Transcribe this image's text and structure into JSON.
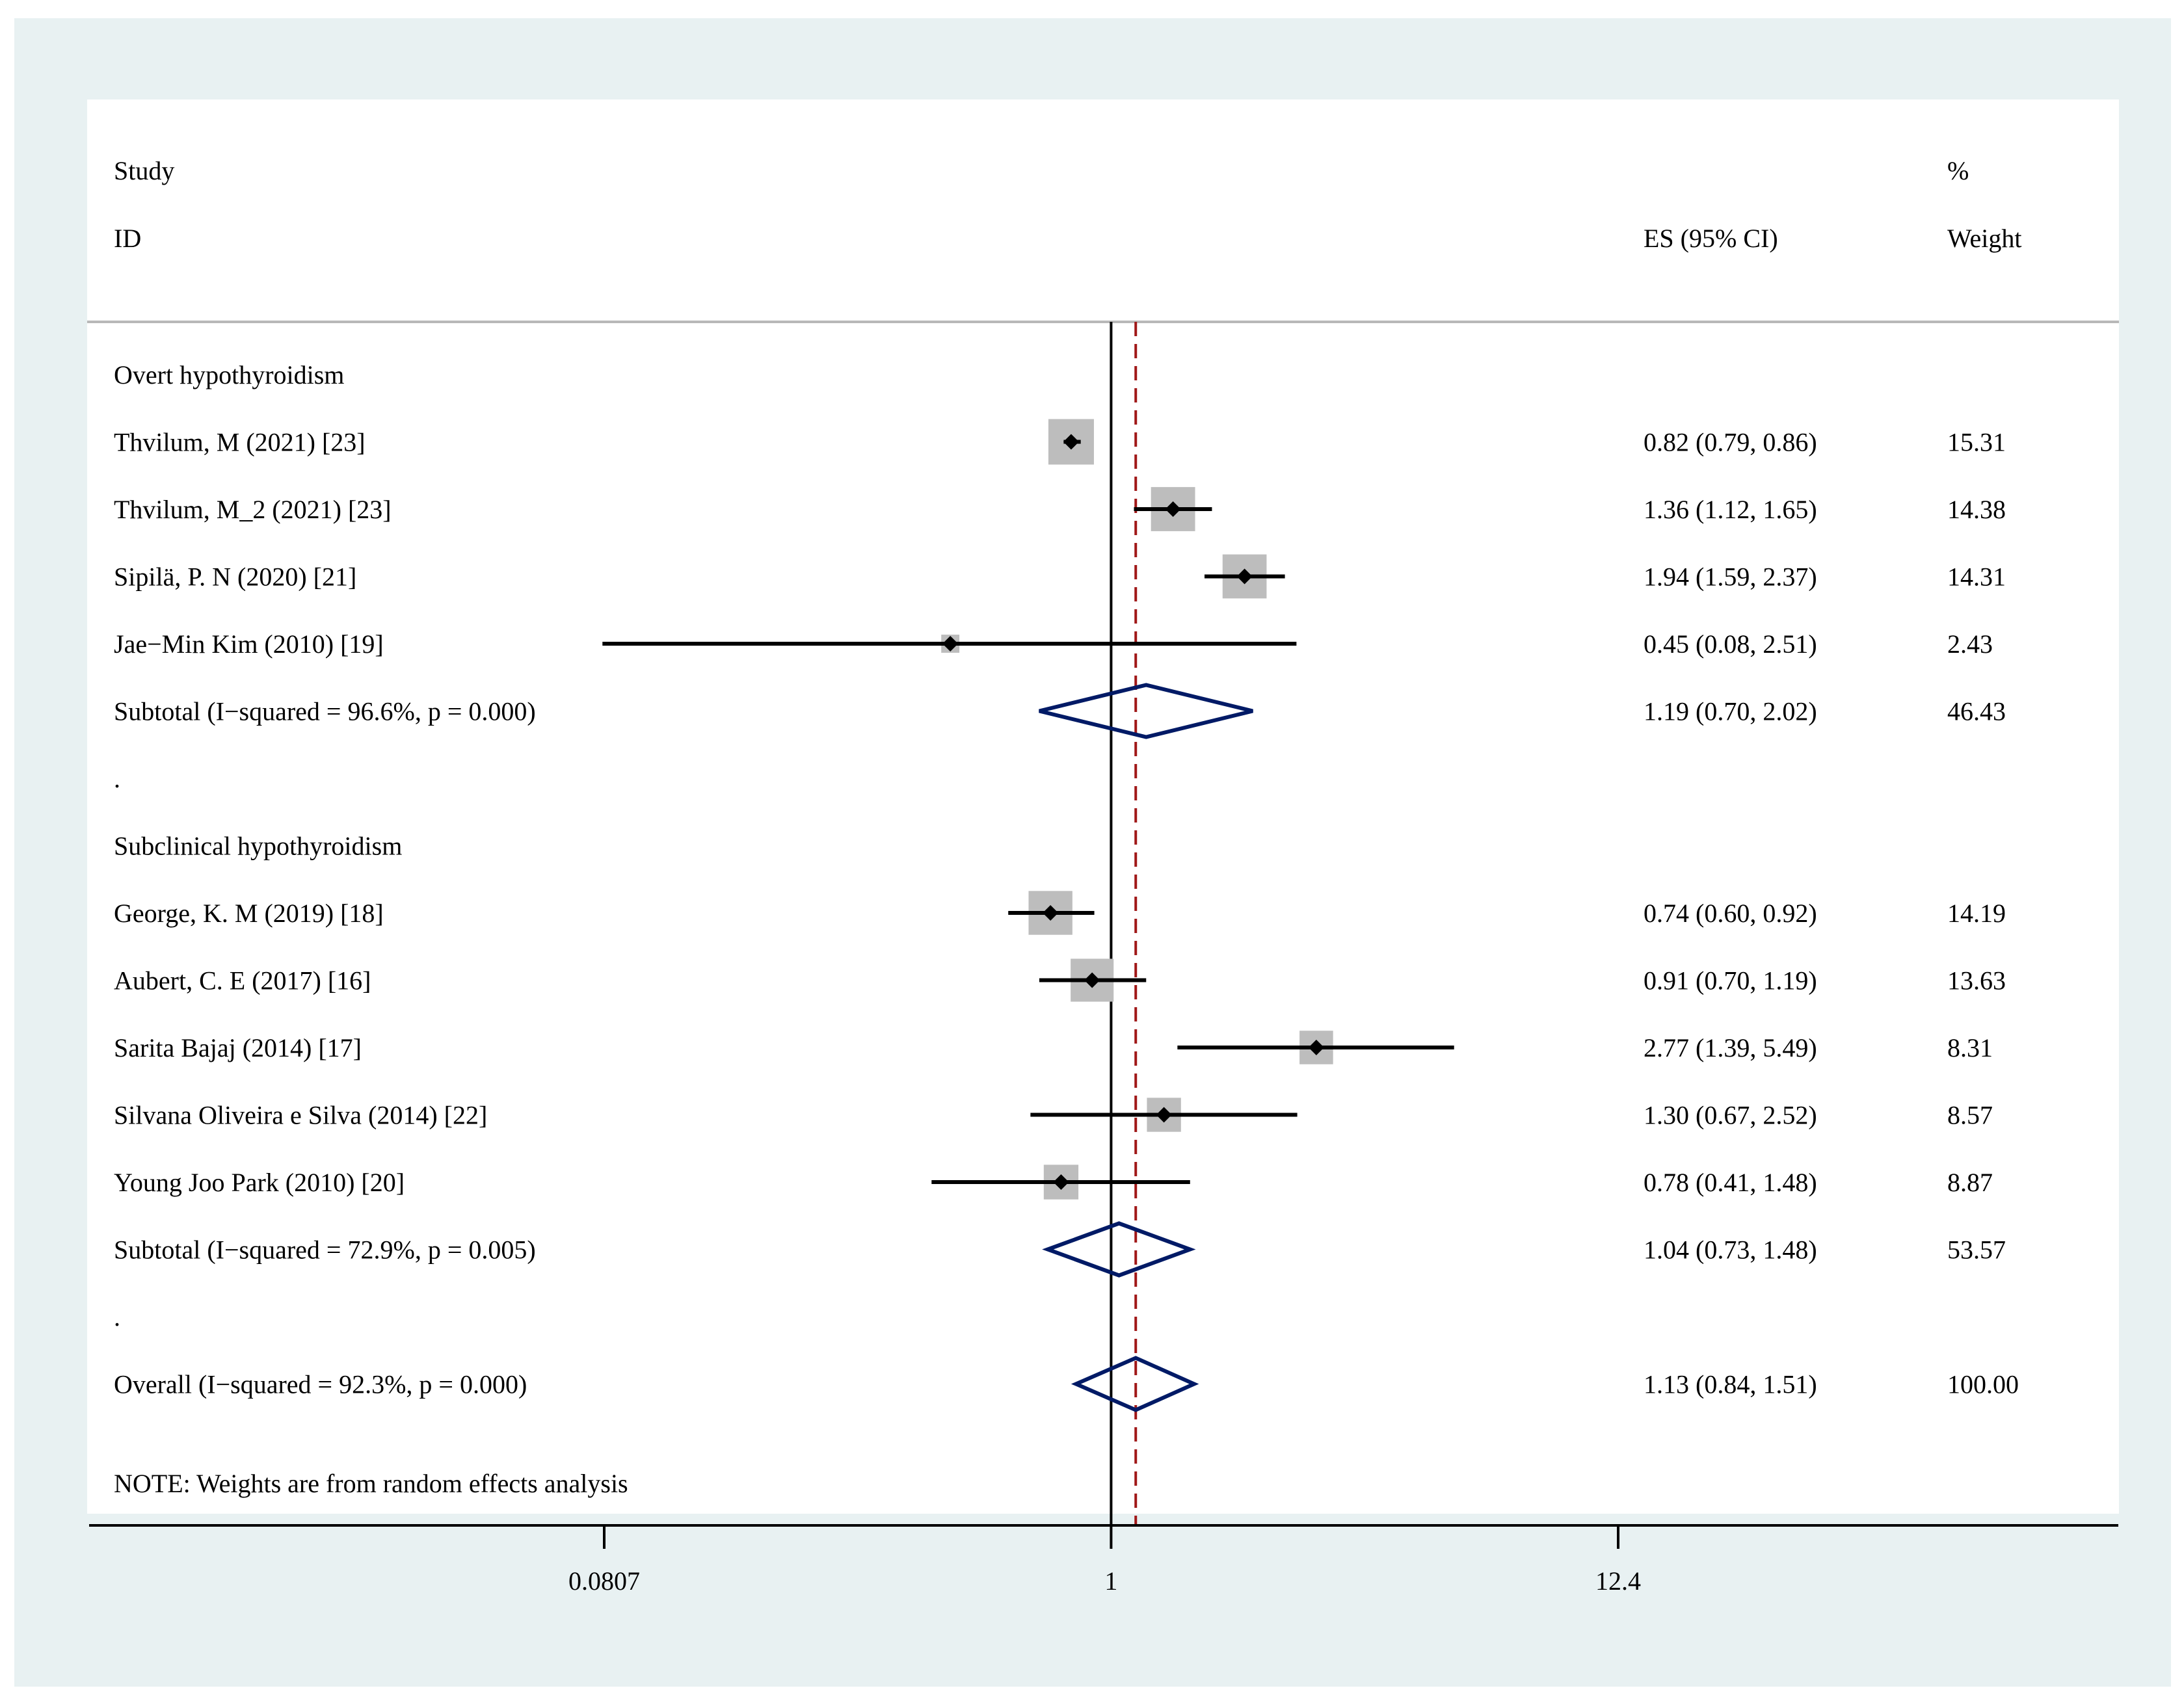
{
  "chart_data": {
    "type": "forest",
    "title": "",
    "scale": "log",
    "xlim": [
      0.0807,
      12.4
    ],
    "xticks": [
      {
        "value": 0.0807,
        "label": "0.0807"
      },
      {
        "value": 1,
        "label": "1"
      },
      {
        "value": 12.4,
        "label": "12.4"
      }
    ],
    "null_line": 1,
    "overall_line": 1.13,
    "headers": {
      "study_line1": "Study",
      "study_line2": "ID",
      "es": "ES (95% CI)",
      "weight_line1": "%",
      "weight_line2": "Weight"
    },
    "rows": [
      {
        "kind": "group",
        "label": "Overt hypothyroidism"
      },
      {
        "kind": "study",
        "label": "Thvilum, M (2021) [23]",
        "es": 0.82,
        "lo": 0.79,
        "hi": 0.86,
        "ci_text": "0.82 (0.79, 0.86)",
        "weight": 15.31,
        "weight_text": "15.31"
      },
      {
        "kind": "study",
        "label": "Thvilum, M_2 (2021) [23]",
        "es": 1.36,
        "lo": 1.12,
        "hi": 1.65,
        "ci_text": "1.36 (1.12, 1.65)",
        "weight": 14.38,
        "weight_text": "14.38"
      },
      {
        "kind": "study",
        "label": "Sipilä, P. N (2020) [21]",
        "es": 1.94,
        "lo": 1.59,
        "hi": 2.37,
        "ci_text": "1.94 (1.59, 2.37)",
        "weight": 14.31,
        "weight_text": "14.31"
      },
      {
        "kind": "study",
        "label": "Jae−Min Kim (2010) [19]",
        "es": 0.45,
        "lo": 0.08,
        "hi": 2.51,
        "ci_text": "0.45 (0.08, 2.51)",
        "weight": 2.43,
        "weight_text": "2.43"
      },
      {
        "kind": "subtotal",
        "label": "Subtotal  (I−squared = 96.6%, p = 0.000)",
        "es": 1.19,
        "lo": 0.7,
        "hi": 2.02,
        "ci_text": "1.19 (0.70, 2.02)",
        "weight": 46.43,
        "weight_text": "46.43"
      },
      {
        "kind": "spacer",
        "label": "."
      },
      {
        "kind": "group",
        "label": "Subclinical hypothyroidism"
      },
      {
        "kind": "study",
        "label": "George, K. M (2019) [18]",
        "es": 0.74,
        "lo": 0.6,
        "hi": 0.92,
        "ci_text": "0.74 (0.60, 0.92)",
        "weight": 14.19,
        "weight_text": "14.19"
      },
      {
        "kind": "study",
        "label": "Aubert, C. E (2017) [16]",
        "es": 0.91,
        "lo": 0.7,
        "hi": 1.19,
        "ci_text": "0.91 (0.70, 1.19)",
        "weight": 13.63,
        "weight_text": "13.63"
      },
      {
        "kind": "study",
        "label": "Sarita Bajaj (2014) [17]",
        "es": 2.77,
        "lo": 1.39,
        "hi": 5.49,
        "ci_text": "2.77 (1.39, 5.49)",
        "weight": 8.31,
        "weight_text": "8.31"
      },
      {
        "kind": "study",
        "label": "Silvana Oliveira e Silva (2014) [22]",
        "es": 1.3,
        "lo": 0.67,
        "hi": 2.52,
        "ci_text": "1.30 (0.67, 2.52)",
        "weight": 8.57,
        "weight_text": "8.57"
      },
      {
        "kind": "study",
        "label": "Young Joo Park (2010) [20]",
        "es": 0.78,
        "lo": 0.41,
        "hi": 1.48,
        "ci_text": "0.78 (0.41, 1.48)",
        "weight": 8.87,
        "weight_text": "8.87"
      },
      {
        "kind": "subtotal",
        "label": "Subtotal  (I−squared = 72.9%, p = 0.005)",
        "es": 1.04,
        "lo": 0.73,
        "hi": 1.48,
        "ci_text": "1.04 (0.73, 1.48)",
        "weight": 53.57,
        "weight_text": "53.57"
      },
      {
        "kind": "spacer",
        "label": "."
      },
      {
        "kind": "overall",
        "label": "Overall  (I−squared = 92.3%, p = 0.000)",
        "es": 1.13,
        "lo": 0.84,
        "hi": 1.51,
        "ci_text": "1.13 (0.84, 1.51)",
        "weight": 100.0,
        "weight_text": "100.00"
      }
    ],
    "note": "NOTE: Weights are from random effects analysis",
    "colors": {
      "outer_background": "#e8f1f2",
      "plot_background": "#ffffff",
      "box": "#bdbdbd",
      "diamond": "#001a66",
      "overall_line": "#a01818",
      "axis": "#000000",
      "header_rule": "#b8b8b8"
    }
  }
}
